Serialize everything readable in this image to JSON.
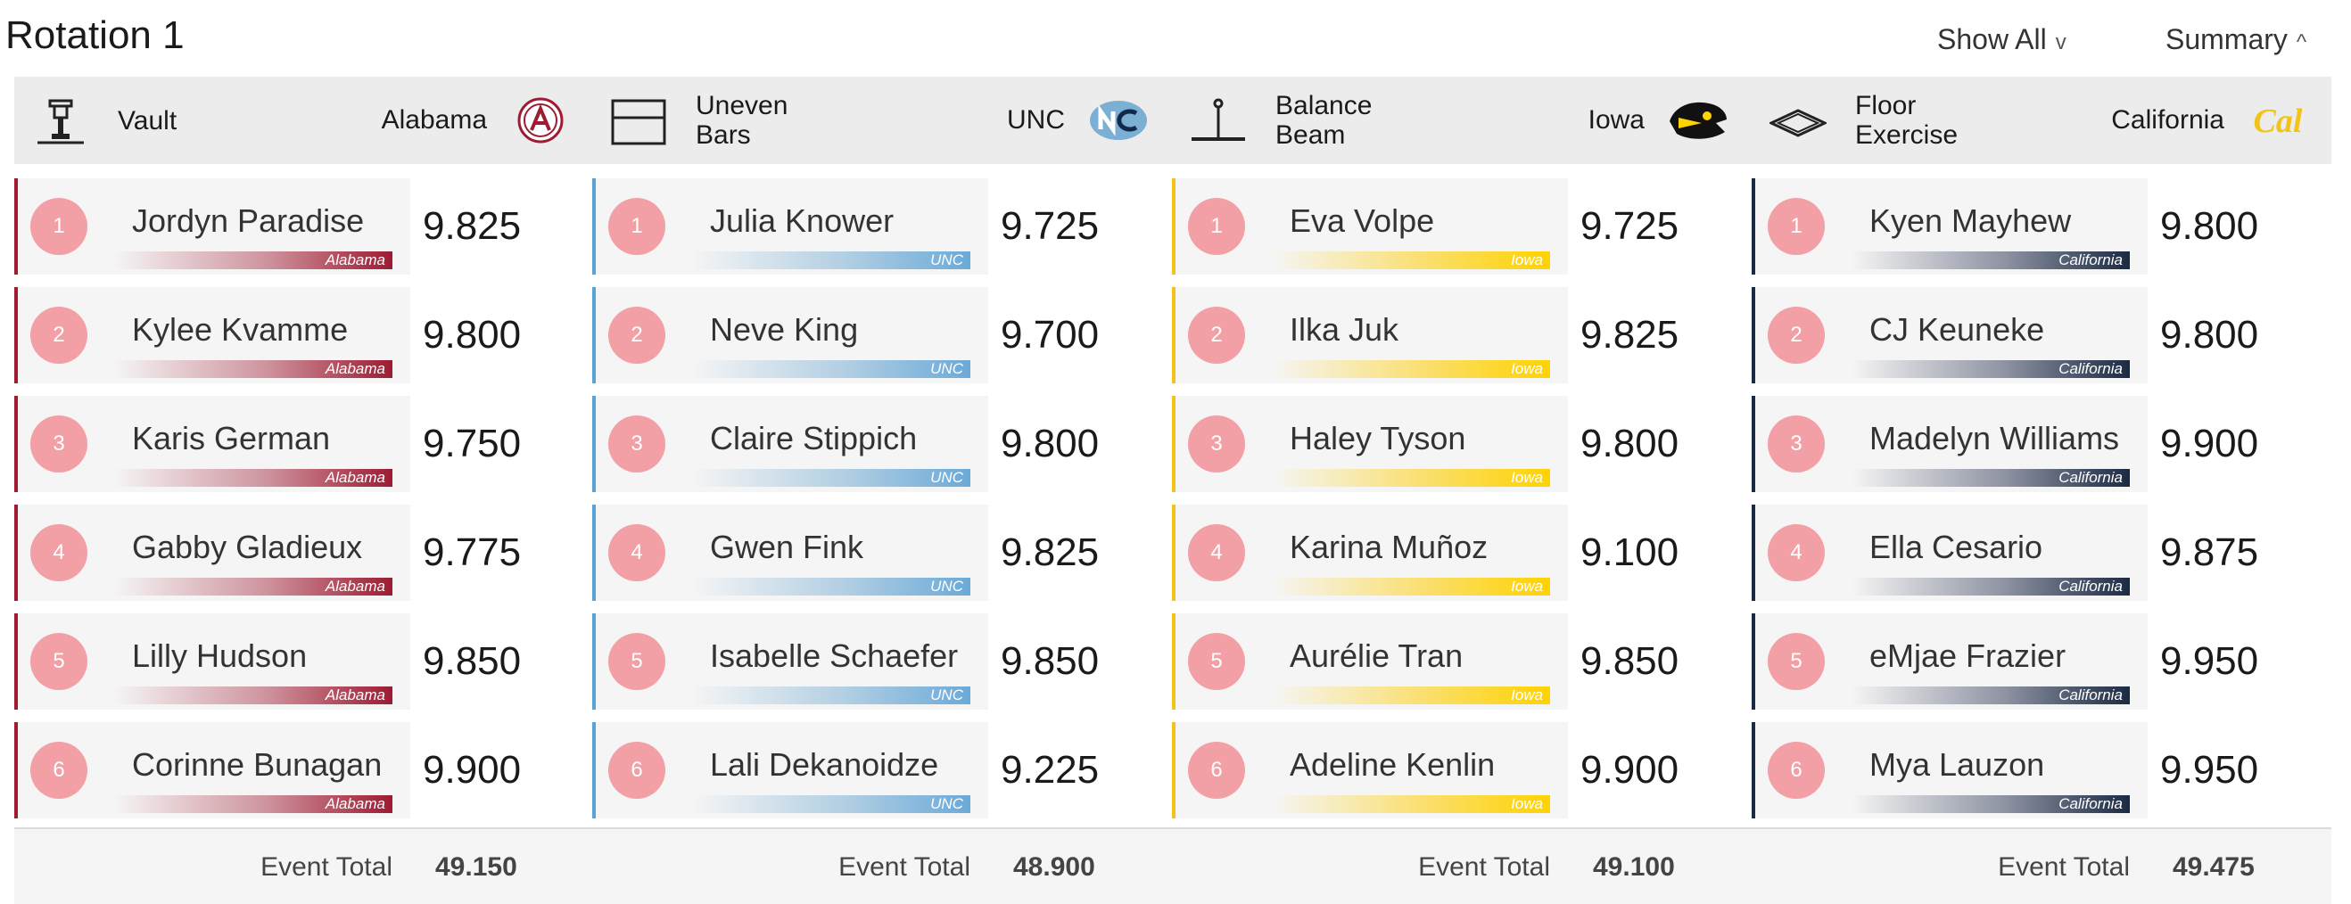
{
  "header": {
    "title": "Rotation 1",
    "show_all": "Show All",
    "show_all_chevron": "v",
    "summary": "Summary",
    "summary_chevron": "^"
  },
  "events": [
    {
      "event": "Vault",
      "team": "Alabama",
      "team_logo": "alabama-logo",
      "color": "#9e1b32",
      "bar_gradient": "linear-gradient(90deg, rgba(158,27,50,0) 0%, rgba(158,27,50,0.45) 55%, #9e1b32 100%)",
      "bar_label": "Alabama",
      "total_label": "Event Total",
      "total": "49.150",
      "athletes": [
        {
          "order": "1",
          "name": "Jordyn Paradise",
          "score": "9.825"
        },
        {
          "order": "2",
          "name": "Kylee Kvamme",
          "score": "9.800"
        },
        {
          "order": "3",
          "name": "Karis German",
          "score": "9.750"
        },
        {
          "order": "4",
          "name": "Gabby Gladieux",
          "score": "9.775"
        },
        {
          "order": "5",
          "name": "Lilly Hudson",
          "score": "9.850"
        },
        {
          "order": "6",
          "name": "Corinne Bunagan",
          "score": "9.900"
        }
      ]
    },
    {
      "event": "Uneven\nBars",
      "team": "UNC",
      "team_logo": "unc-logo",
      "color": "#5aa3d6",
      "bar_gradient": "linear-gradient(90deg, rgba(123,175,212,0) 0%, rgba(123,175,212,0.55) 55%, #6aaad8 100%)",
      "bar_label": "UNC",
      "total_label": "Event Total",
      "total": "48.900",
      "athletes": [
        {
          "order": "1",
          "name": "Julia Knower",
          "score": "9.725"
        },
        {
          "order": "2",
          "name": "Neve King",
          "score": "9.700"
        },
        {
          "order": "3",
          "name": "Claire Stippich",
          "score": "9.800"
        },
        {
          "order": "4",
          "name": "Gwen Fink",
          "score": "9.825"
        },
        {
          "order": "5",
          "name": "Isabelle Schaefer",
          "score": "9.850"
        },
        {
          "order": "6",
          "name": "Lali Dekanoidze",
          "score": "9.225"
        }
      ]
    },
    {
      "event": "Balance\nBeam",
      "team": "Iowa",
      "team_logo": "iowa-hawkeye-logo",
      "color": "#f2c318",
      "bar_gradient": "linear-gradient(90deg, rgba(255,205,0,0) 0%, rgba(255,205,0,0.55) 55%, #ffd200 100%)",
      "bar_label": "Iowa",
      "total_label": "Event Total",
      "total": "49.100",
      "athletes": [
        {
          "order": "1",
          "name": "Eva Volpe",
          "score": "9.725"
        },
        {
          "order": "2",
          "name": "Ilka Juk",
          "score": "9.825"
        },
        {
          "order": "3",
          "name": "Haley Tyson",
          "score": "9.800"
        },
        {
          "order": "4",
          "name": "Karina Muñoz",
          "score": "9.100"
        },
        {
          "order": "5",
          "name": "Aurélie Tran",
          "score": "9.850"
        },
        {
          "order": "6",
          "name": "Adeline Kenlin",
          "score": "9.900"
        }
      ]
    },
    {
      "event": "Floor\nExercise",
      "team": "California",
      "team_logo": "cal-logo",
      "color": "#1b2a44",
      "bar_gradient": "linear-gradient(90deg, rgba(0,38,118,0) 0%, rgba(40,50,80,0.5) 55%, #1b2a44 100%)",
      "bar_label": "California",
      "total_label": "Event Total",
      "total": "49.475",
      "athletes": [
        {
          "order": "1",
          "name": "Kyen Mayhew",
          "score": "9.800"
        },
        {
          "order": "2",
          "name": "CJ Keuneke",
          "score": "9.800"
        },
        {
          "order": "3",
          "name": "Madelyn Williams",
          "score": "9.900"
        },
        {
          "order": "4",
          "name": "Ella Cesario",
          "score": "9.875"
        },
        {
          "order": "5",
          "name": "eMjae Frazier",
          "score": "9.950"
        },
        {
          "order": "6",
          "name": "Mya Lauzon",
          "score": "9.950"
        }
      ]
    }
  ]
}
